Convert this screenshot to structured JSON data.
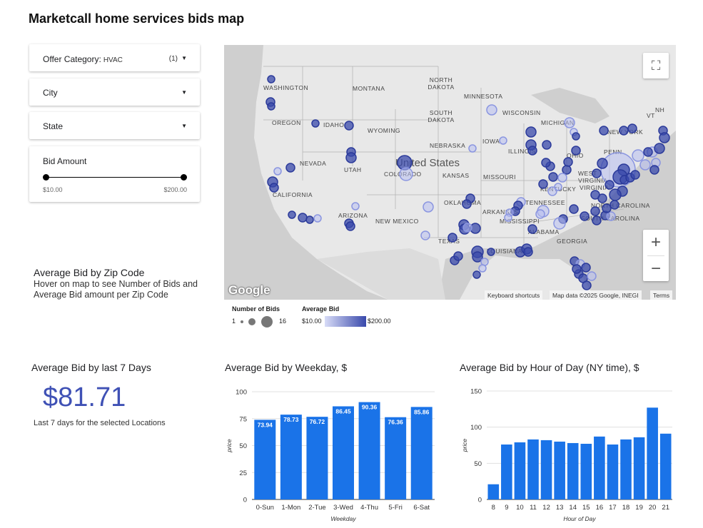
{
  "page": {
    "title": "Marketcall home services bids map"
  },
  "filters": {
    "offer_category": {
      "label": "Offer Category:",
      "value": "HVAC",
      "count": "(1)"
    },
    "city": {
      "label": "City"
    },
    "state": {
      "label": "State"
    },
    "bid_amount": {
      "label": "Bid Amount",
      "min": "$10.00",
      "max": "$200.00"
    }
  },
  "zip_section": {
    "title": "Average Bid by Zip Code",
    "subtitle": "Hover on map to see Number of Bids and Average Bid amount per Zip Code"
  },
  "map": {
    "labels": [
      "WASHINGTON",
      "MONTANA",
      "NORTH DAKOTA",
      "MINNESOTA",
      "SOUTH DAKOTA",
      "WISCONSIN",
      "MICHIGAN",
      "OREGON",
      "IDAHO",
      "WYOMING",
      "NEW YORK",
      "IOWA",
      "NEBRASKA",
      "ILLINOIS",
      "OHIO",
      "PENN",
      "NEVADA",
      "UTAH",
      "COLORADO",
      "KANSAS",
      "MISSOURI",
      "WEST VIRGINIA",
      "VIRGINIA",
      "CALIFORNIA",
      "KENTUCKY",
      "TENNESSEE",
      "OKLAHOMA",
      "ARKANSAS",
      "NORTH CAROLINA",
      "SOUTH CAROLINA",
      "ARIZONA",
      "NEW MEXICO",
      "MISSISSIPPI",
      "ALABAMA",
      "GEORGIA",
      "TEXAS",
      "LOUISIANA",
      "United States",
      "VT",
      "NH"
    ],
    "google_logo": "Google",
    "attribution": {
      "shortcuts": "Keyboard shortcuts",
      "data": "Map data ©2025 Google, INEGI",
      "terms": "Terms"
    },
    "zoom_in": "+",
    "zoom_out": "−",
    "fullscreen_icon": "fullscreen-icon",
    "colors": {
      "dark_bubble": "#3949ab",
      "light_bubble": "#b7bef0"
    }
  },
  "legend": {
    "bids_title": "Number of Bids",
    "bids_min": "1",
    "bids_max": "16",
    "avg_title": "Average Bid",
    "avg_min": "$10.00",
    "avg_max": "$200.00"
  },
  "last7": {
    "title": "Average Bid by last 7 Days",
    "value": "$81.71",
    "subtitle": "Last 7 days for the selected Locations"
  },
  "chart_data": [
    {
      "type": "bar",
      "title": "Average Bid by Weekday, $",
      "xlabel": "Weekday",
      "ylabel": "price",
      "ylim": [
        0,
        100
      ],
      "yticks": [
        0,
        25,
        50,
        75,
        100
      ],
      "categories": [
        "0-Sun",
        "1-Mon",
        "2-Tue",
        "3-Wed",
        "4-Thu",
        "5-Fri",
        "6-Sat"
      ],
      "values": [
        73.94,
        78.73,
        76.72,
        86.45,
        90.36,
        76.36,
        85.86
      ],
      "data_labels": [
        "73.94",
        "78.73",
        "76.72",
        "86.45",
        "90.36",
        "76.36",
        "85.86"
      ],
      "color": "#1a73e8"
    },
    {
      "type": "bar",
      "title": "Average Bid by Hour of Day (NY time), $",
      "xlabel": "Hour of Day",
      "ylabel": "price",
      "ylim": [
        0,
        150
      ],
      "yticks": [
        0,
        50,
        100,
        150
      ],
      "categories": [
        "8",
        "9",
        "10",
        "11",
        "12",
        "13",
        "14",
        "15",
        "16",
        "17",
        "18",
        "19",
        "20",
        "21"
      ],
      "values": [
        21,
        76,
        79,
        83,
        82,
        80,
        78,
        77,
        87,
        76,
        83,
        86,
        127,
        91
      ],
      "color": "#1a73e8"
    }
  ]
}
